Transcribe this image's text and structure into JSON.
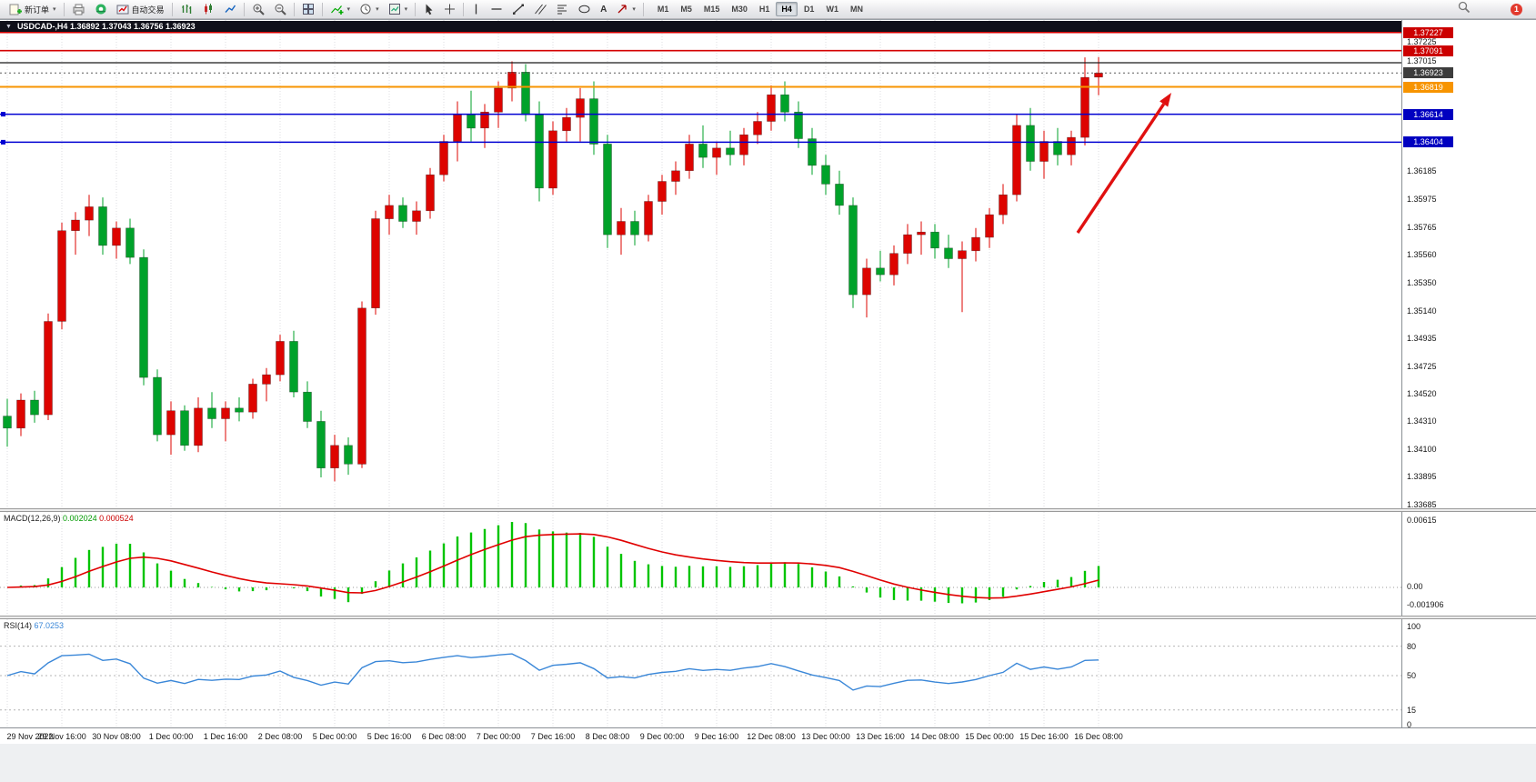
{
  "toolbar": {
    "new_order_label": "新订单",
    "autotrade_label": "自动交易",
    "timeframes": [
      "M1",
      "M5",
      "M15",
      "M30",
      "H1",
      "H4",
      "D1",
      "W1",
      "MN"
    ],
    "active_timeframe": "H4",
    "notification_count": "1"
  },
  "chart": {
    "title": "USDCAD-,H4  1.36892 1.37043 1.36756 1.36923",
    "symbol": "USDCAD-",
    "timeframe": "H4",
    "ohlc": {
      "open": "1.36892",
      "high": "1.37043",
      "low": "1.36756",
      "close": "1.36923"
    }
  },
  "price_axis": {
    "ticks": [
      "1.37225",
      "1.37015",
      "1.36185",
      "1.35975",
      "1.35765",
      "1.35560",
      "1.35350",
      "1.35140",
      "1.34935",
      "1.34725",
      "1.34520",
      "1.34310",
      "1.34100",
      "1.33895",
      "1.33685"
    ]
  },
  "levels": [
    {
      "price": 1.37227,
      "color": "#d40000",
      "width": 1.6,
      "style": "solid",
      "badge": "1.37227",
      "badge_bg": "#cc0000",
      "name": "resistance-line-1"
    },
    {
      "price": 1.37091,
      "color": "#d40000",
      "width": 1.6,
      "style": "solid",
      "badge": "1.37091",
      "badge_bg": "#cc0000",
      "name": "resistance-line-2"
    },
    {
      "price": 1.37,
      "color": "#1a1a1a",
      "width": 1.2,
      "style": "solid",
      "name": "black-horizontal-line"
    },
    {
      "price": 1.36923,
      "color": "#5a5a5a",
      "width": 1,
      "style": "dot",
      "badge": "1.36923",
      "badge_bg": "#3c3c3c",
      "name": "bid-price-line"
    },
    {
      "price": 1.36819,
      "color": "#f79400",
      "width": 2,
      "style": "solid",
      "badge": "1.36819",
      "badge_bg": "#f79400",
      "name": "orange-level-line"
    },
    {
      "price": 1.36614,
      "color": "#0000d2",
      "width": 1.5,
      "style": "solid",
      "badge": "1.36614",
      "badge_bg": "#0000c0",
      "handles": true,
      "name": "blue-level-line-1"
    },
    {
      "price": 1.36404,
      "color": "#0000d2",
      "width": 1.5,
      "style": "solid",
      "badge": "1.36404",
      "badge_bg": "#0000c0",
      "handles": true,
      "name": "blue-level-line-2"
    }
  ],
  "chart_data": {
    "type": "candlestick",
    "symbol": "USDCAD",
    "period": "H4",
    "bull_color": "#dd0400",
    "bear_color": "#00a22a",
    "price_range": [
      1.33685,
      1.37225
    ],
    "candles": [
      [
        1.3435,
        1.3448,
        1.3412,
        1.3426
      ],
      [
        1.3426,
        1.3452,
        1.342,
        1.3447
      ],
      [
        1.3447,
        1.3454,
        1.343,
        1.3436
      ],
      [
        1.3436,
        1.3512,
        1.3432,
        1.3506
      ],
      [
        1.3506,
        1.358,
        1.35,
        1.3574
      ],
      [
        1.3574,
        1.3588,
        1.3556,
        1.3582
      ],
      [
        1.3582,
        1.3601,
        1.357,
        1.3592
      ],
      [
        1.3592,
        1.3599,
        1.3556,
        1.3563
      ],
      [
        1.3563,
        1.3581,
        1.3553,
        1.3576
      ],
      [
        1.3576,
        1.3583,
        1.3549,
        1.3554
      ],
      [
        1.3554,
        1.356,
        1.3458,
        1.3464
      ],
      [
        1.3464,
        1.347,
        1.3416,
        1.3421
      ],
      [
        1.3421,
        1.3446,
        1.3406,
        1.3439
      ],
      [
        1.3439,
        1.3443,
        1.3409,
        1.3413
      ],
      [
        1.3413,
        1.3449,
        1.3408,
        1.3441
      ],
      [
        1.3441,
        1.3453,
        1.3426,
        1.3433
      ],
      [
        1.3433,
        1.3446,
        1.3416,
        1.3441
      ],
      [
        1.3441,
        1.3449,
        1.3431,
        1.3438
      ],
      [
        1.3438,
        1.3463,
        1.3433,
        1.3459
      ],
      [
        1.3459,
        1.3471,
        1.3446,
        1.3466
      ],
      [
        1.3466,
        1.3496,
        1.3461,
        1.3491
      ],
      [
        1.3491,
        1.3499,
        1.3449,
        1.3453
      ],
      [
        1.3453,
        1.3461,
        1.3426,
        1.3431
      ],
      [
        1.3431,
        1.3439,
        1.3389,
        1.3396
      ],
      [
        1.3396,
        1.3421,
        1.3386,
        1.3413
      ],
      [
        1.3413,
        1.3419,
        1.3391,
        1.3399
      ],
      [
        1.3399,
        1.3521,
        1.3396,
        1.3516
      ],
      [
        1.3516,
        1.3589,
        1.3511,
        1.3583
      ],
      [
        1.3583,
        1.3601,
        1.3571,
        1.3593
      ],
      [
        1.3593,
        1.3599,
        1.3576,
        1.3581
      ],
      [
        1.3581,
        1.3596,
        1.3571,
        1.3589
      ],
      [
        1.3589,
        1.3621,
        1.3583,
        1.3616
      ],
      [
        1.3616,
        1.3646,
        1.3611,
        1.3641
      ],
      [
        1.3641,
        1.3671,
        1.3626,
        1.3661
      ],
      [
        1.3661,
        1.3679,
        1.3641,
        1.3651
      ],
      [
        1.3651,
        1.3669,
        1.3636,
        1.3663
      ],
      [
        1.3663,
        1.3686,
        1.3651,
        1.3681
      ],
      [
        1.3681,
        1.3701,
        1.3671,
        1.3693
      ],
      [
        1.3693,
        1.3699,
        1.3656,
        1.3661
      ],
      [
        1.3661,
        1.3671,
        1.3596,
        1.3606
      ],
      [
        1.3606,
        1.3656,
        1.3601,
        1.3649
      ],
      [
        1.3649,
        1.3666,
        1.3641,
        1.3659
      ],
      [
        1.3659,
        1.3681,
        1.3641,
        1.3673
      ],
      [
        1.3673,
        1.3686,
        1.3631,
        1.3639
      ],
      [
        1.3639,
        1.3646,
        1.3561,
        1.3571
      ],
      [
        1.3571,
        1.3591,
        1.3556,
        1.3581
      ],
      [
        1.3581,
        1.3589,
        1.3563,
        1.3571
      ],
      [
        1.3571,
        1.3601,
        1.3566,
        1.3596
      ],
      [
        1.3596,
        1.3616,
        1.3586,
        1.3611
      ],
      [
        1.3611,
        1.3626,
        1.3601,
        1.3619
      ],
      [
        1.3619,
        1.3646,
        1.3613,
        1.3639
      ],
      [
        1.3639,
        1.3653,
        1.3621,
        1.3629
      ],
      [
        1.3629,
        1.3641,
        1.3616,
        1.3636
      ],
      [
        1.3636,
        1.3649,
        1.3623,
        1.3631
      ],
      [
        1.3631,
        1.3651,
        1.3623,
        1.3646
      ],
      [
        1.3646,
        1.3663,
        1.3639,
        1.3656
      ],
      [
        1.3656,
        1.3683,
        1.3649,
        1.3676
      ],
      [
        1.3676,
        1.3686,
        1.3656,
        1.3663
      ],
      [
        1.3663,
        1.3671,
        1.3636,
        1.3643
      ],
      [
        1.3643,
        1.3651,
        1.3616,
        1.3623
      ],
      [
        1.3623,
        1.3631,
        1.3601,
        1.3609
      ],
      [
        1.3609,
        1.3619,
        1.3586,
        1.3593
      ],
      [
        1.3593,
        1.3599,
        1.3516,
        1.3526
      ],
      [
        1.3526,
        1.3553,
        1.3509,
        1.3546
      ],
      [
        1.3546,
        1.3559,
        1.3536,
        1.3541
      ],
      [
        1.3541,
        1.3563,
        1.3533,
        1.3557
      ],
      [
        1.3557,
        1.3579,
        1.3549,
        1.3571
      ],
      [
        1.3571,
        1.3581,
        1.3556,
        1.3573
      ],
      [
        1.3573,
        1.3579,
        1.3553,
        1.3561
      ],
      [
        1.3561,
        1.3571,
        1.3546,
        1.3553
      ],
      [
        1.3553,
        1.3566,
        1.3513,
        1.3559
      ],
      [
        1.3559,
        1.3576,
        1.3551,
        1.3569
      ],
      [
        1.3569,
        1.3591,
        1.3561,
        1.3586
      ],
      [
        1.3586,
        1.3609,
        1.3579,
        1.3601
      ],
      [
        1.3601,
        1.3661,
        1.3596,
        1.3653
      ],
      [
        1.3653,
        1.3666,
        1.3619,
        1.3626
      ],
      [
        1.3626,
        1.3649,
        1.3613,
        1.3641
      ],
      [
        1.3641,
        1.3651,
        1.3623,
        1.3631
      ],
      [
        1.3631,
        1.3649,
        1.3623,
        1.3644
      ],
      [
        1.3644,
        1.3704,
        1.3638,
        1.3689
      ],
      [
        1.36892,
        1.37043,
        1.36756,
        1.36923
      ]
    ],
    "x_labels": [
      {
        "i": 0,
        "t": "29 Nov 2022"
      },
      {
        "i": 4,
        "t": "29 Nov 16:00"
      },
      {
        "i": 8,
        "t": "30 Nov 08:00"
      },
      {
        "i": 12,
        "t": "1 Dec 00:00"
      },
      {
        "i": 16,
        "t": "1 Dec 16:00"
      },
      {
        "i": 20,
        "t": "2 Dec 08:00"
      },
      {
        "i": 24,
        "t": "5 Dec 00:00"
      },
      {
        "i": 28,
        "t": "5 Dec 16:00"
      },
      {
        "i": 32,
        "t": "6 Dec 08:00"
      },
      {
        "i": 36,
        "t": "7 Dec 00:00"
      },
      {
        "i": 40,
        "t": "7 Dec 16:00"
      },
      {
        "i": 44,
        "t": "8 Dec 08:00"
      },
      {
        "i": 48,
        "t": "9 Dec 00:00"
      },
      {
        "i": 52,
        "t": "9 Dec 16:00"
      },
      {
        "i": 56,
        "t": "12 Dec 08:00"
      },
      {
        "i": 60,
        "t": "13 Dec 00:00"
      },
      {
        "i": 64,
        "t": "13 Dec 16:00"
      },
      {
        "i": 68,
        "t": "14 Dec 08:00"
      },
      {
        "i": 72,
        "t": "15 Dec 00:00"
      },
      {
        "i": 76,
        "t": "15 Dec 16:00"
      },
      {
        "i": 80,
        "t": "16 Dec 08:00"
      }
    ]
  },
  "macd": {
    "label": "MACD(12,26,9)",
    "value1": "0.002024",
    "value2": "0.000524",
    "axis": [
      "0.00615",
      "0.00",
      "-0.001906"
    ],
    "params": {
      "fast": 12,
      "slow": 26,
      "signal": 9
    },
    "histogram_color": "#00c400",
    "signal_color": "#e00000"
  },
  "rsi": {
    "label": "RSI(14)",
    "value": "67.0253",
    "axis": [
      "100",
      "80",
      "50",
      "15",
      "0"
    ],
    "levels": [
      80,
      50,
      15
    ],
    "line_color": "#3a87d8"
  },
  "annotation_arrow": {
    "from": [
      1185,
      234
    ],
    "to": [
      1288,
      80
    ],
    "color": "#e01010"
  }
}
